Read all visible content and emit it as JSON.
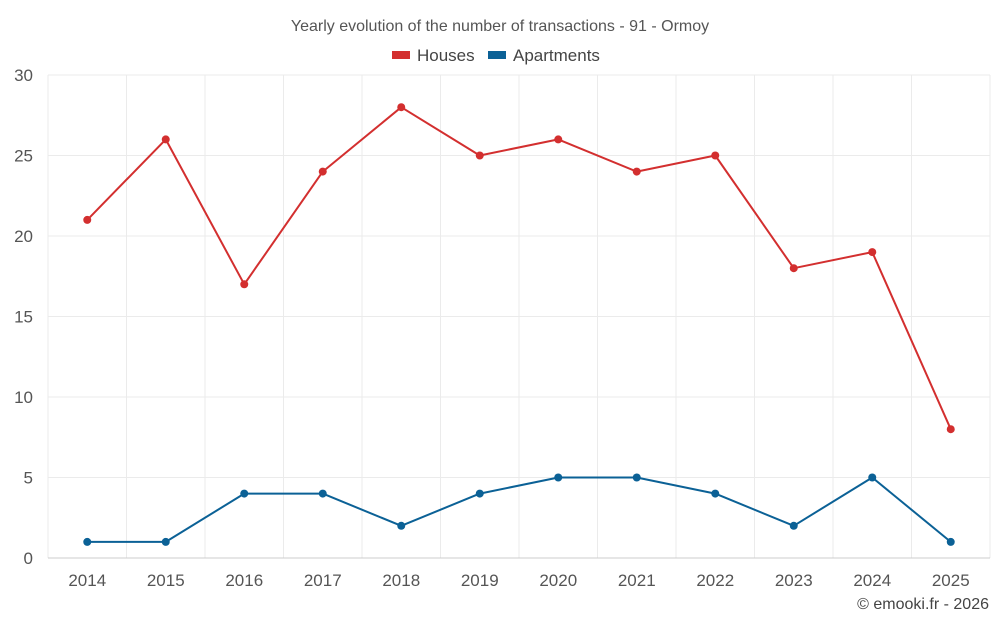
{
  "chart_data": {
    "type": "line",
    "title": "Yearly evolution of the number of transactions - 91 - Ormoy",
    "categories": [
      "2014",
      "2015",
      "2016",
      "2017",
      "2018",
      "2019",
      "2020",
      "2021",
      "2022",
      "2023",
      "2024",
      "2025"
    ],
    "series": [
      {
        "name": "Houses",
        "color": "#d32f2f",
        "values": [
          21,
          26,
          17,
          24,
          28,
          25,
          26,
          24,
          25,
          18,
          19,
          8
        ]
      },
      {
        "name": "Apartments",
        "color": "#0b6196",
        "values": [
          1,
          1,
          4,
          4,
          2,
          4,
          5,
          5,
          4,
          2,
          5,
          1
        ]
      }
    ],
    "ylim": [
      0,
      30
    ],
    "yticks": [
      0,
      5,
      10,
      15,
      20,
      25,
      30
    ],
    "grid": true,
    "legend_position": "top-center",
    "xlabel": "",
    "ylabel": ""
  },
  "credit": "© emooki.fr - 2026"
}
